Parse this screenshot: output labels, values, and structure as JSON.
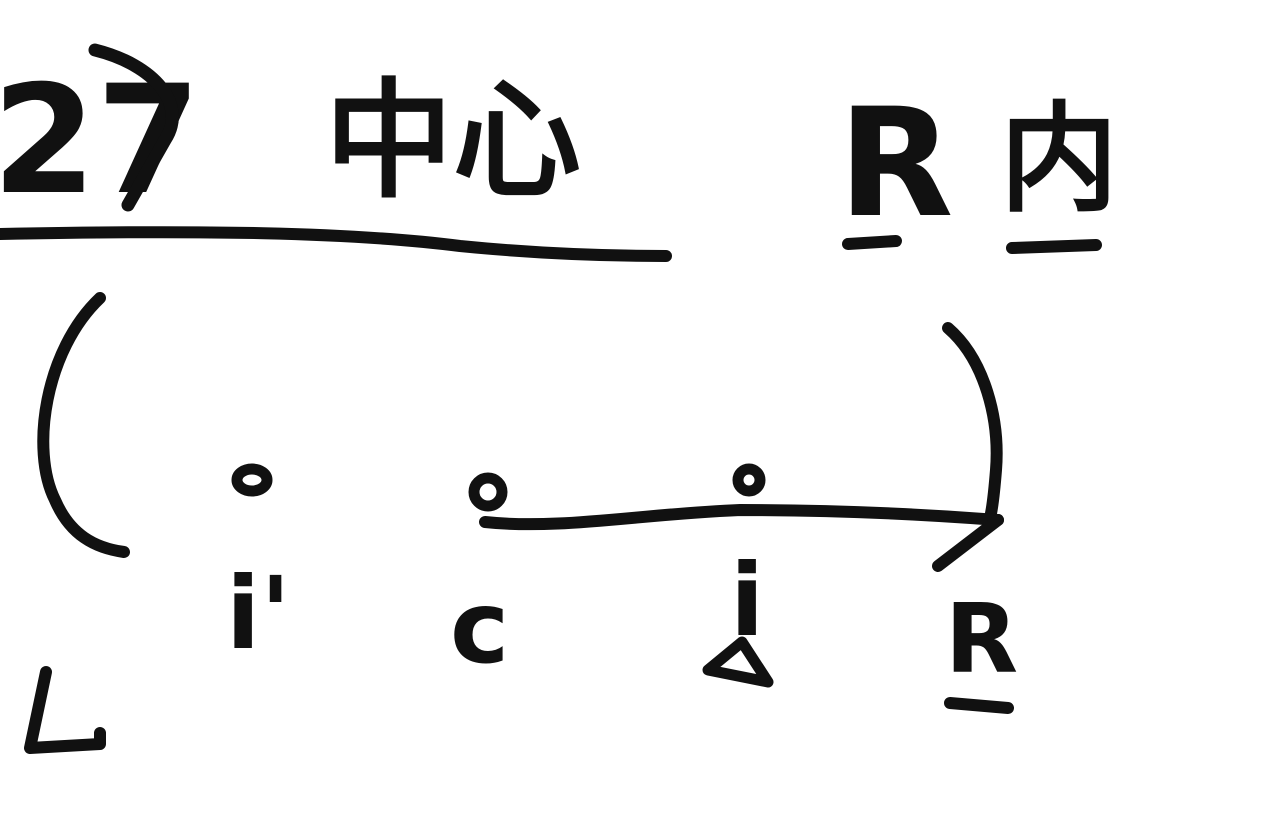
{
  "ink_color": "#111111",
  "background": "#ffffff",
  "header": {
    "number": "27",
    "title": "中心",
    "right_letter": "R",
    "right_word": "内"
  },
  "points": {
    "i_prime": "i'",
    "c": "c",
    "i": "i",
    "r": "R"
  },
  "marker_under_i": "triangle",
  "corner_mark": "L"
}
